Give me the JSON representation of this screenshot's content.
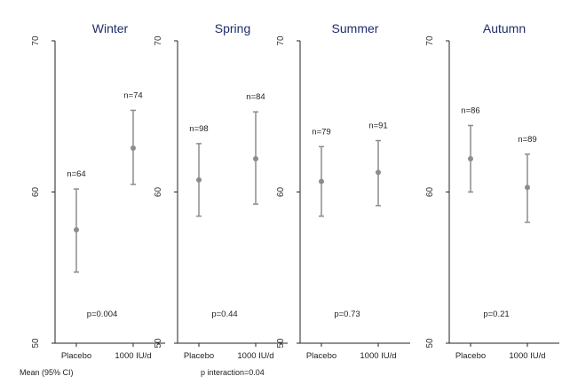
{
  "chart_data": {
    "type": "scatter",
    "subtype": "point-with-error-bars",
    "ylim": [
      50,
      70
    ],
    "yticks": [
      50,
      60,
      70
    ],
    "categories": [
      "Placebo",
      "1000 IU/d"
    ],
    "panels": [
      {
        "title": "Winter",
        "p_label": "p=0.004",
        "points": [
          {
            "category": "Placebo",
            "mean": 57.5,
            "ci_low": 54.7,
            "ci_high": 60.2,
            "n_label": "n=64"
          },
          {
            "category": "1000 IU/d",
            "mean": 62.9,
            "ci_low": 60.5,
            "ci_high": 65.4,
            "n_label": "n=74"
          }
        ]
      },
      {
        "title": "Spring",
        "p_label": "p=0.44",
        "points": [
          {
            "category": "Placebo",
            "mean": 60.8,
            "ci_low": 58.4,
            "ci_high": 63.2,
            "n_label": "n=98"
          },
          {
            "category": "1000 IU/d",
            "mean": 62.2,
            "ci_low": 59.2,
            "ci_high": 65.3,
            "n_label": "n=84"
          }
        ]
      },
      {
        "title": "Summer",
        "p_label": "p=0.73",
        "points": [
          {
            "category": "Placebo",
            "mean": 60.7,
            "ci_low": 58.4,
            "ci_high": 63.0,
            "n_label": "n=79"
          },
          {
            "category": "1000 IU/d",
            "mean": 61.3,
            "ci_low": 59.1,
            "ci_high": 63.4,
            "n_label": "n=91"
          }
        ]
      },
      {
        "title": "Autumn",
        "p_label": "p=0.21",
        "points": [
          {
            "category": "Placebo",
            "mean": 62.2,
            "ci_low": 60.0,
            "ci_high": 64.4,
            "n_label": "n=86"
          },
          {
            "category": "1000 IU/d",
            "mean": 60.3,
            "ci_low": 58.0,
            "ci_high": 62.5,
            "n_label": "n=89"
          }
        ]
      }
    ],
    "footnote_left": "Mean (95% CI)",
    "footnote_center": "p interaction=0.04",
    "colors": {
      "point": "#8c8c8c",
      "error_bar": "#8c8c8c",
      "axis": "#222222",
      "title": "#1f2d6b"
    }
  }
}
